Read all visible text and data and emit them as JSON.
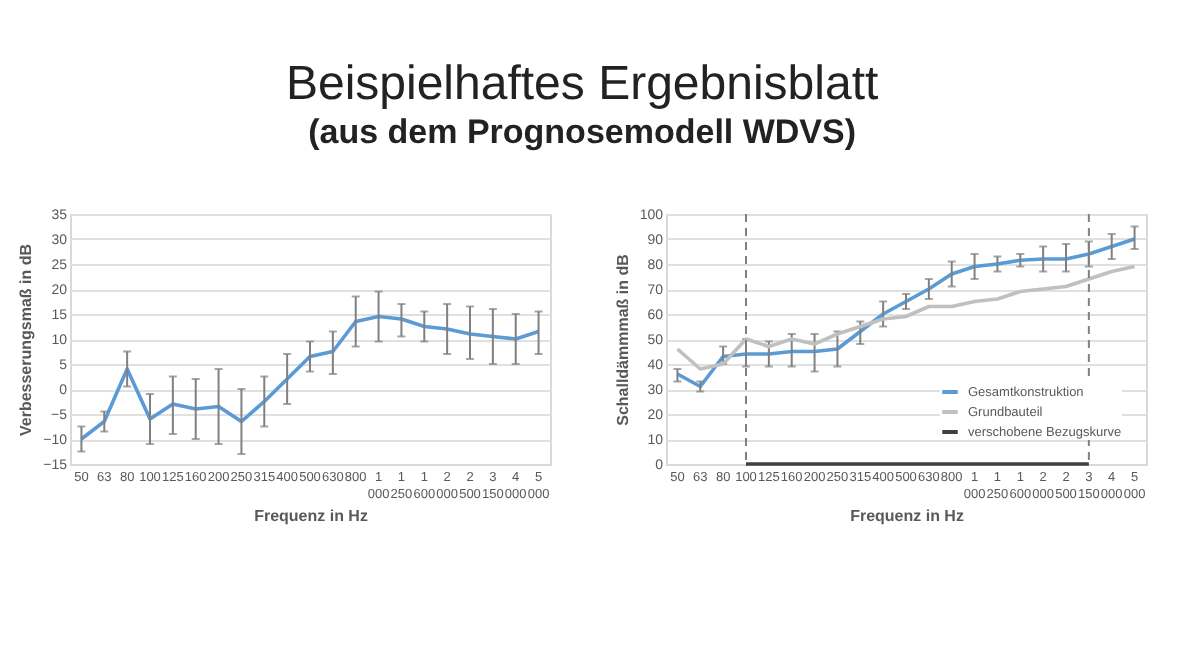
{
  "chart_data": [
    {
      "type": "line",
      "title": "Beispielhaftes Ergebnisblatt",
      "subtitle": "(aus dem Prognosemodell WDVS)",
      "xlabel": "Frequenz in Hz",
      "ylabel": "Verbesserungsmaß in dB",
      "categories": [
        "50",
        "63",
        "80",
        "100",
        "125",
        "160",
        "200",
        "250",
        "315",
        "400",
        "500",
        "630",
        "800",
        "1 000",
        "1 250",
        "1 600",
        "2 000",
        "2 500",
        "3 150",
        "4 000",
        "5 000"
      ],
      "ylim": [
        -15,
        35
      ],
      "yticks": [
        -15,
        -10,
        -5,
        0,
        5,
        10,
        15,
        20,
        25,
        30,
        35
      ],
      "grid": "y",
      "legend": false,
      "series": [
        {
          "color": "#5b9bd5",
          "values": [
            -10,
            -6.5,
            4,
            -6,
            -3,
            -4,
            -3.5,
            -6.5,
            -2.5,
            2,
            6.5,
            7.5,
            13.5,
            14.5,
            14,
            12.5,
            12,
            11,
            10.5,
            10,
            11.5
          ],
          "errors": [
            [
              -12.5,
              -7.5
            ],
            [
              -8.5,
              -4.5
            ],
            [
              0.5,
              7.5
            ],
            [
              -11,
              -1
            ],
            [
              -9,
              2.5
            ],
            [
              -10,
              2
            ],
            [
              -11,
              4
            ],
            [
              -13,
              0
            ],
            [
              -7.5,
              2.5
            ],
            [
              -3,
              7
            ],
            [
              3.5,
              9.5
            ],
            [
              3,
              11.5
            ],
            [
              8.5,
              18.5
            ],
            [
              9.5,
              19.5
            ],
            [
              10.5,
              17
            ],
            [
              9.5,
              15.5
            ],
            [
              7,
              17
            ],
            [
              6,
              16.5
            ],
            [
              5,
              16
            ],
            [
              5,
              15
            ],
            [
              7,
              15.5
            ]
          ]
        }
      ]
    },
    {
      "type": "line",
      "xlabel": "Frequenz in Hz",
      "ylabel": "Schalldämmmaß in dB",
      "categories": [
        "50",
        "63",
        "80",
        "100",
        "125",
        "160",
        "200",
        "250",
        "315",
        "400",
        "500",
        "630",
        "800",
        "1 000",
        "1 250",
        "1 600",
        "2 000",
        "2 500",
        "3 150",
        "4 000",
        "5 000"
      ],
      "ylim": [
        0,
        100
      ],
      "yticks": [
        0,
        10,
        20,
        30,
        40,
        50,
        60,
        70,
        80,
        90,
        100
      ],
      "grid": "y",
      "legend": "bottom right",
      "ref_lines": [
        {
          "axis": "x",
          "value": "100",
          "line_style": "dashed",
          "color": "#808080"
        },
        {
          "axis": "x",
          "value": "3 150",
          "line_style": "dashed",
          "color": "#808080"
        }
      ],
      "series": [
        {
          "name": "Gesamtkonstruktion",
          "color": "#5b9bd5",
          "values": [
            36,
            31,
            43,
            44,
            44,
            45,
            45,
            46,
            53,
            60,
            65,
            70,
            76,
            79,
            80,
            81.5,
            82,
            82,
            84,
            87,
            90
          ],
          "errors": [
            [
              33,
              38
            ],
            [
              29,
              33
            ],
            [
              40,
              47
            ],
            [
              39,
              50
            ],
            [
              39,
              49
            ],
            [
              39,
              52
            ],
            [
              37,
              52
            ],
            [
              39,
              53
            ],
            [
              48,
              57
            ],
            [
              55,
              65
            ],
            [
              62,
              68
            ],
            [
              66,
              74
            ],
            [
              71,
              81
            ],
            [
              74,
              84
            ],
            [
              77,
              83
            ],
            [
              79,
              84
            ],
            [
              77,
              87
            ],
            [
              77,
              88
            ],
            [
              79,
              89
            ],
            [
              82,
              92
            ],
            [
              86,
              95
            ]
          ]
        },
        {
          "name": "Grundbauteil",
          "color": "#c0c0c0",
          "values": [
            46,
            38,
            40,
            50,
            47,
            50,
            48,
            52,
            55,
            58,
            59,
            63,
            63,
            65,
            66,
            69,
            70,
            71,
            74,
            77,
            79
          ]
        },
        {
          "name": "verschobene Bezugskurve",
          "color": "#404040",
          "values": [
            null,
            null,
            null,
            0,
            0,
            0,
            0,
            0,
            0,
            0,
            0,
            0,
            0,
            0,
            0,
            0,
            0,
            0,
            0,
            null,
            null
          ]
        }
      ]
    }
  ]
}
